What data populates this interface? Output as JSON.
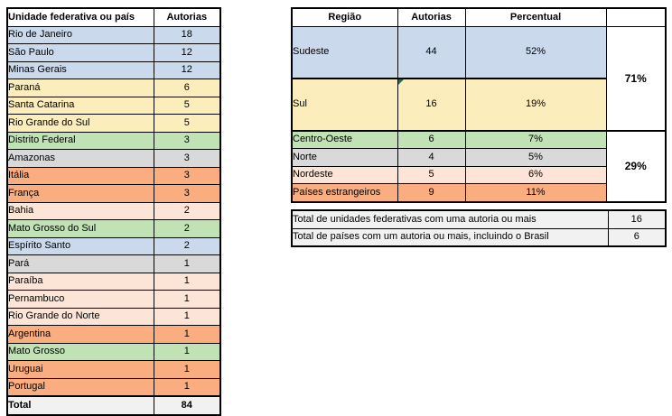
{
  "colors": {
    "blue": "#CBD9EC",
    "yellow": "#FCEDBC",
    "green": "#C0E2B5",
    "gray": "#D9D9D9",
    "orange": "#FAAD7E",
    "peach": "#FCE4D6",
    "total_bg": "#F1F1F1",
    "summary_bg": "#F1F1F1",
    "comment_flag": "#217346"
  },
  "left_table": {
    "headers": [
      "Unidade federativa ou país",
      "Autorias"
    ],
    "rows": [
      {
        "label": "Rio de Janeiro",
        "value": "18",
        "color": "blue"
      },
      {
        "label": "São Paulo",
        "value": "12",
        "color": "blue"
      },
      {
        "label": "Minas Gerais",
        "value": "12",
        "color": "blue"
      },
      {
        "label": "Paraná",
        "value": "6",
        "color": "yellow"
      },
      {
        "label": "Santa Catarina",
        "value": "5",
        "color": "yellow"
      },
      {
        "label": "Rio Grande do Sul",
        "value": "5",
        "color": "yellow"
      },
      {
        "label": "Distrito Federal",
        "value": "3",
        "color": "green"
      },
      {
        "label": "Amazonas",
        "value": "3",
        "color": "gray"
      },
      {
        "label": "Itália",
        "value": "3",
        "color": "orange"
      },
      {
        "label": "França",
        "value": "3",
        "color": "orange"
      },
      {
        "label": "Bahia",
        "value": "2",
        "color": "peach"
      },
      {
        "label": "Mato Grosso do Sul",
        "value": "2",
        "color": "green"
      },
      {
        "label": "Espírito Santo",
        "value": "2",
        "color": "blue"
      },
      {
        "label": "Pará",
        "value": "1",
        "color": "gray"
      },
      {
        "label": "Paraíba",
        "value": "1",
        "color": "peach"
      },
      {
        "label": "Pernambuco",
        "value": "1",
        "color": "peach"
      },
      {
        "label": "Rio Grande do Norte",
        "value": "1",
        "color": "peach"
      },
      {
        "label": "Argentina",
        "value": "1",
        "color": "orange"
      },
      {
        "label": "Mato Grosso",
        "value": "1",
        "color": "green"
      },
      {
        "label": "Uruguai",
        "value": "1",
        "color": "orange"
      },
      {
        "label": "Portugal",
        "value": "1",
        "color": "orange"
      }
    ],
    "total": {
      "label": "Total",
      "value": "84"
    }
  },
  "right_table": {
    "headers": [
      "Região",
      "Autorias",
      "Percentual"
    ],
    "rows": [
      {
        "label": "Sudeste",
        "value": "44",
        "percent": "52%",
        "color": "blue",
        "tall": true
      },
      {
        "label": "Sul",
        "value": "16",
        "percent": "19%",
        "color": "yellow",
        "tall": true,
        "has_comment_flag": true
      },
      {
        "label": "Centro-Oeste",
        "value": "6",
        "percent": "7%",
        "color": "green"
      },
      {
        "label": "Norte",
        "value": "4",
        "percent": "5%",
        "color": "gray"
      },
      {
        "label": "Nordeste",
        "value": "5",
        "percent": "6%",
        "color": "peach"
      },
      {
        "label": "Países estrangeiros",
        "value": "9",
        "percent": "11%",
        "color": "orange"
      }
    ],
    "group_totals": [
      {
        "label": "71%"
      },
      {
        "label": "29%"
      }
    ]
  },
  "summary_table": {
    "rows": [
      {
        "label": "Total de unidades federativas com uma autoria ou mais",
        "value": "16"
      },
      {
        "label": "Total de países com um autoria ou mais, incluindo o Brasil",
        "value": "6"
      }
    ]
  }
}
